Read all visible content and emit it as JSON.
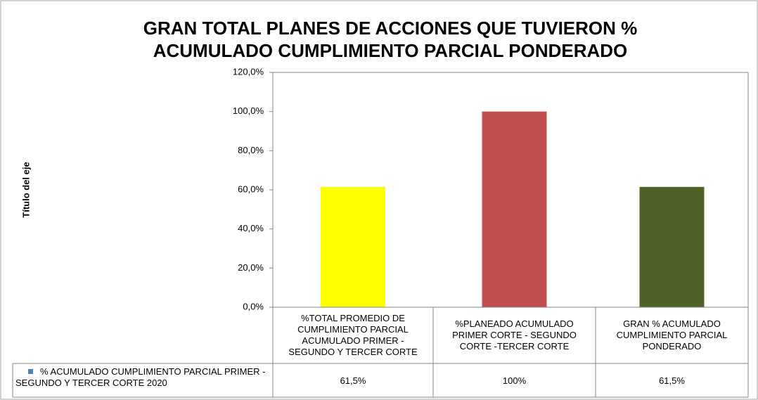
{
  "chart_data": {
    "type": "bar",
    "title": "GRAN TOTAL PLANES DE ACCIONES QUE TUVIERON % ACUMULADO CUMPLIMIENTO PARCIAL PONDERADO",
    "ylabel": "Título del eje",
    "categories": [
      "%TOTAL PROMEDIO DE CUMPLIMIENTO PARCIAL ACUMULADO PRIMER - SEGUNDO  Y TERCER CORTE",
      "%PLANEADO ACUMULADO  PRIMER CORTE - SEGUNDO CORTE -TERCER CORTE",
      "GRAN % ACUMULADO CUMPLIMIENTO PARCIAL PONDERADO"
    ],
    "series": [
      {
        "name": "% ACUMULADO CUMPLIMIENTO PARCIAL PRIMER - SEGUNDO Y TERCER  CORTE 2020",
        "color": "#4f81bd",
        "point_colors": [
          "#ffff00",
          "#c0504d",
          "#4f6228"
        ],
        "values": [
          61.5,
          100,
          61.5
        ],
        "value_labels": [
          "61,5%",
          "100%",
          "61,5%"
        ]
      }
    ],
    "ylim": [
      0,
      120
    ],
    "yticks": [
      {
        "value": 0,
        "label": "0,0%"
      },
      {
        "value": 20,
        "label": "20,0%"
      },
      {
        "value": 40,
        "label": "40,0%"
      },
      {
        "value": 60,
        "label": "60,0%"
      },
      {
        "value": 80,
        "label": "80,0%"
      },
      {
        "value": 100,
        "label": "100,0%"
      },
      {
        "value": 120,
        "label": "120,0%"
      }
    ],
    "grid": false
  }
}
